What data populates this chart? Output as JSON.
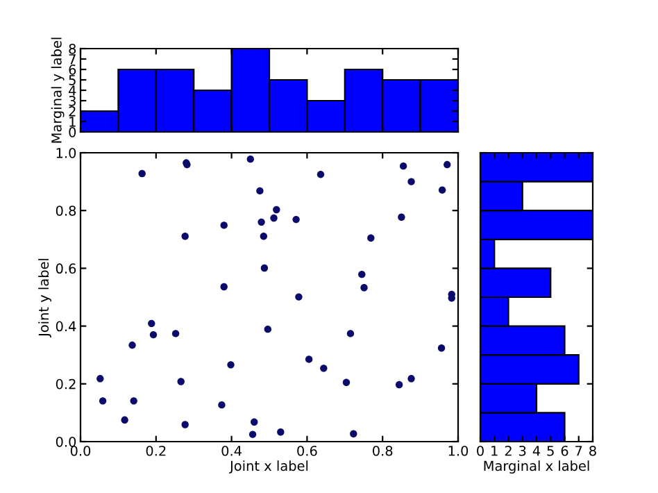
{
  "chart_data": [
    {
      "type": "histogram",
      "ylabel": "Marginal y label",
      "bins": [
        0,
        0.1,
        0.2,
        0.3,
        0.4,
        0.5,
        0.6,
        0.7,
        0.8,
        0.9,
        1.0
      ],
      "values": [
        2,
        6,
        6,
        4,
        8,
        5,
        3,
        6,
        5,
        5
      ],
      "color": "#0000ff",
      "xlim": [
        0,
        1
      ],
      "xticks": [
        0.0,
        0.2,
        0.4,
        0.6,
        0.8,
        1.0
      ],
      "ylim": [
        0,
        8
      ],
      "yticks": [
        0,
        1,
        2,
        3,
        4,
        5,
        6,
        7,
        8
      ],
      "tick_labels": "y",
      "grid": false
    },
    {
      "type": "scatter",
      "xlabel": "Joint x label",
      "ylabel": "Joint y label",
      "color": "#0b0b6b",
      "marker": "circle",
      "grid": false,
      "xlim": [
        0,
        1
      ],
      "xticks": [
        {
          "value": 0,
          "label": "0.0"
        },
        0.2,
        0.4,
        0.6,
        0.8,
        {
          "value": 1,
          "label": "1.0"
        }
      ],
      "ylim": [
        0,
        1
      ],
      "yticks": [
        {
          "value": 0,
          "label": "0.0"
        },
        0.2,
        0.4,
        0.6,
        0.8,
        {
          "value": 1,
          "label": "1.0"
        }
      ],
      "x": [
        0.052,
        0.059,
        0.117,
        0.137,
        0.141,
        0.163,
        0.188,
        0.193,
        0.252,
        0.266,
        0.277,
        0.277,
        0.28,
        0.282,
        0.374,
        0.38,
        0.38,
        0.398,
        0.45,
        0.456,
        0.46,
        0.475,
        0.479,
        0.485,
        0.487,
        0.496,
        0.512,
        0.519,
        0.53,
        0.571,
        0.578,
        0.605,
        0.636,
        0.644,
        0.704,
        0.715,
        0.723,
        0.745,
        0.751,
        0.769,
        0.844,
        0.85,
        0.855,
        0.876,
        0.876,
        0.956,
        0.958,
        0.971,
        0.983,
        0.983
      ],
      "values": [
        0.218,
        0.141,
        0.075,
        0.334,
        0.141,
        0.928,
        0.409,
        0.37,
        0.374,
        0.208,
        0.711,
        0.059,
        0.965,
        0.959,
        0.127,
        0.749,
        0.536,
        0.266,
        0.978,
        0.025,
        0.068,
        0.868,
        0.76,
        0.711,
        0.601,
        0.389,
        0.774,
        0.803,
        0.033,
        0.769,
        0.501,
        0.285,
        0.925,
        0.254,
        0.205,
        0.374,
        0.027,
        0.579,
        0.533,
        0.705,
        0.197,
        0.777,
        0.954,
        0.9,
        0.218,
        0.324,
        0.871,
        0.959,
        0.51,
        0.497
      ]
    },
    {
      "type": "histogram",
      "orientation": "horizontal",
      "xlabel": "Marginal x label",
      "bins": [
        0,
        0.1,
        0.2,
        0.3,
        0.4,
        0.5,
        0.6,
        0.7,
        0.8,
        0.9,
        1.0
      ],
      "values": [
        6,
        4,
        7,
        6,
        2,
        5,
        1,
        8,
        3,
        8
      ],
      "color": "#0000ff",
      "xlim": [
        0,
        8
      ],
      "xticks": [
        0,
        1,
        2,
        3,
        4,
        5,
        6,
        7,
        8
      ],
      "ylim": [
        0,
        1
      ],
      "yticks": [
        0.0,
        0.2,
        0.4,
        0.6,
        0.8,
        1.0
      ],
      "tick_labels": "x",
      "grid": false
    }
  ]
}
